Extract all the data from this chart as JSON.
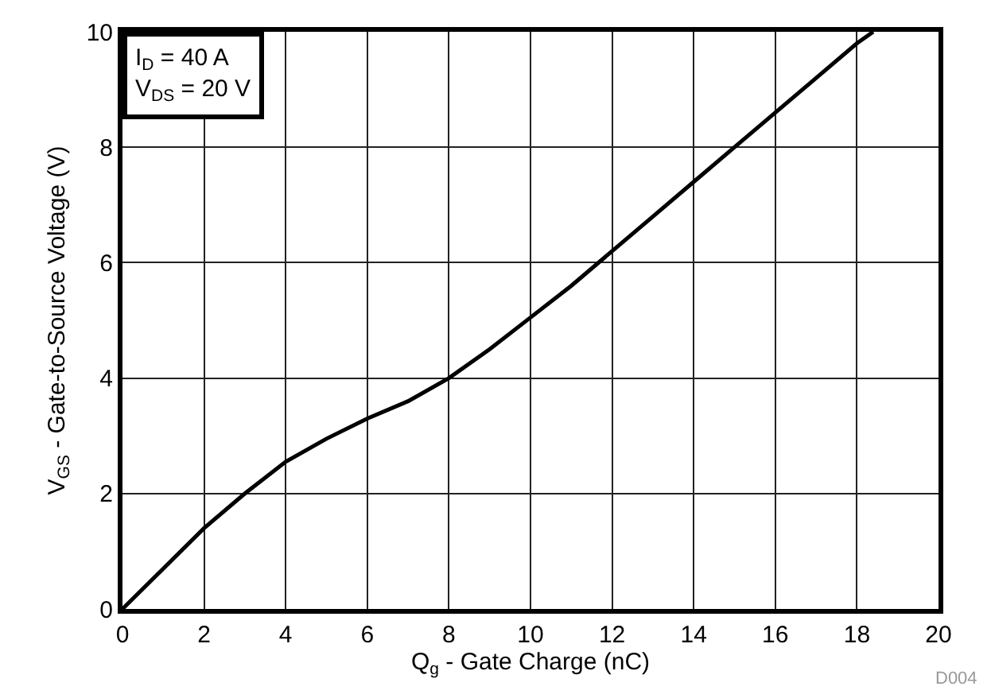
{
  "chart_data": {
    "type": "line",
    "xlabel": "Q$_{g}$ - Gate Charge (nC)",
    "ylabel": "V$_{GS}$ - Gate-to-Source Voltage (V)",
    "annotations": [
      "I$_{D}$ = 40 A\nV$_{DS}$ = 20 V",
      "D004"
    ],
    "x": [
      0,
      1,
      2,
      3,
      4,
      5,
      6,
      7,
      8,
      9,
      10,
      11,
      12,
      13,
      14,
      15,
      16,
      17,
      18,
      18.4
    ],
    "series": [
      {
        "color": "#000000",
        "values": [
          0,
          0.7,
          1.4,
          2.0,
          2.55,
          2.95,
          3.3,
          3.6,
          4.0,
          4.5,
          5.05,
          5.6,
          6.2,
          6.8,
          7.4,
          8.0,
          8.6,
          9.2,
          9.8,
          10
        ]
      }
    ],
    "xlim": [
      0,
      20
    ],
    "xticks": [
      0,
      2,
      4,
      6,
      8,
      10,
      12,
      14,
      16,
      18,
      20
    ],
    "ylim": [
      0,
      10
    ],
    "yticks": [
      0,
      2,
      4,
      6,
      8,
      10
    ],
    "grid": true,
    "marker": "none",
    "line_style": "solid"
  }
}
